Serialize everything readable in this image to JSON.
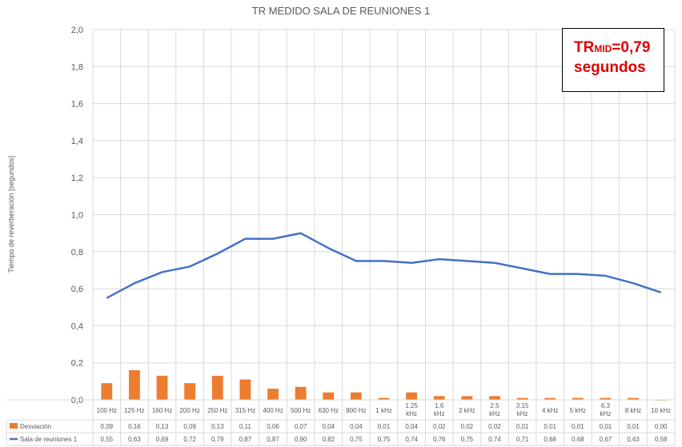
{
  "chart_data": {
    "type": "bar+line",
    "title": "TR MEDIDO SALA DE REUNIONES 1",
    "ylabel": "Tiempo de reverberación [segundos]",
    "ylim": [
      0,
      2.0
    ],
    "yticks": [
      "0,0",
      "0,2",
      "0,4",
      "0,6",
      "0,8",
      "1,0",
      "1,2",
      "1,4",
      "1,6",
      "1,8",
      "2,0"
    ],
    "grid": true,
    "categories": [
      "100 Hz",
      "125 Hz",
      "160 Hz",
      "200 Hz",
      "250 Hz",
      "315 Hz",
      "400 Hz",
      "500 Hz",
      "630 Hz",
      "800 Hz",
      "1 kHz",
      "1.25 kHz",
      "1.6 kHz",
      "2 kHz",
      "2.5 kHz",
      "3.15 kHz",
      "4 kHz",
      "5 kHz",
      "6.3 kHz",
      "8 kHz",
      "10 kHz"
    ],
    "series": [
      {
        "name": "Desviación",
        "kind": "bar",
        "color": "#ed7d31",
        "values": [
          0.09,
          0.16,
          0.13,
          0.09,
          0.13,
          0.11,
          0.06,
          0.07,
          0.04,
          0.04,
          0.01,
          0.04,
          0.02,
          0.02,
          0.02,
          0.01,
          0.01,
          0.01,
          0.01,
          0.01,
          0.0
        ],
        "labels": [
          "0,09",
          "0,16",
          "0,13",
          "0,09",
          "0,13",
          "0,11",
          "0,06",
          "0,07",
          "0,04",
          "0,04",
          "0,01",
          "0,04",
          "0,02",
          "0,02",
          "0,02",
          "0,01",
          "0,01",
          "0,01",
          "0,01",
          "0,01",
          "0,00"
        ]
      },
      {
        "name": "Sala de reuniones 1",
        "kind": "line",
        "color": "#4472c4",
        "values": [
          0.55,
          0.63,
          0.69,
          0.72,
          0.79,
          0.87,
          0.87,
          0.9,
          0.82,
          0.75,
          0.75,
          0.74,
          0.76,
          0.75,
          0.74,
          0.71,
          0.68,
          0.68,
          0.67,
          0.63,
          0.58
        ],
        "labels": [
          "0,55",
          "0,63",
          "0,69",
          "0,72",
          "0,79",
          "0,87",
          "0,87",
          "0,90",
          "0,82",
          "0,75",
          "0,75",
          "0,74",
          "0,76",
          "0,75",
          "0,74",
          "0,71",
          "0,68",
          "0,68",
          "0,67",
          "0,63",
          "0,58"
        ]
      }
    ],
    "legend": "data-table",
    "annotation": {
      "prefix": "TR",
      "subscript": "MID",
      "value": "=0,79",
      "line2": "segundos",
      "color": "#e00000"
    }
  }
}
